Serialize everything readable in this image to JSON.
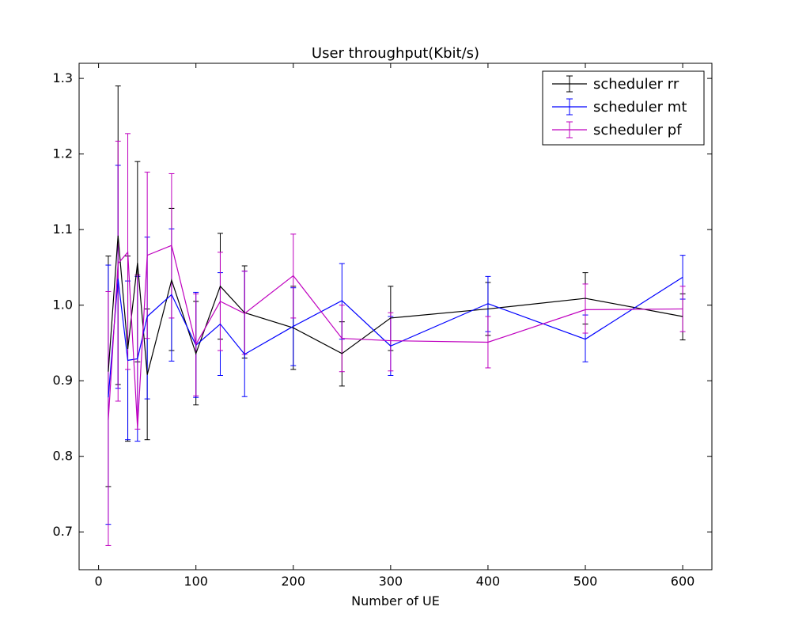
{
  "chart_data": {
    "type": "line",
    "title": "User throughput(Kbit/s)",
    "xlabel": "Number of UE",
    "ylabel": "",
    "xlim": [
      -20,
      630
    ],
    "ylim": [
      0.65,
      1.32
    ],
    "x_ticks": [
      0,
      100,
      200,
      300,
      400,
      500,
      600
    ],
    "y_ticks": [
      0.7,
      0.8,
      0.9,
      1.0,
      1.1,
      1.2,
      1.3
    ],
    "grid": false,
    "legend_position": "top-right",
    "x": [
      10,
      20,
      30,
      40,
      50,
      75,
      100,
      125,
      150,
      200,
      250,
      300,
      400,
      500,
      600
    ],
    "series": [
      {
        "name": "scheduler rr",
        "color": "#000000",
        "values": [
          0.912,
          1.092,
          0.942,
          1.056,
          0.908,
          1.033,
          0.936,
          1.025,
          0.99,
          0.97,
          0.936,
          0.983,
          0.995,
          1.009,
          0.985
        ],
        "err_low": [
          0.76,
          0.895,
          0.82,
          0.925,
          0.822,
          0.94,
          0.868,
          0.955,
          0.93,
          0.915,
          0.893,
          0.94,
          0.96,
          0.975,
          0.954
        ],
        "err_high": [
          1.065,
          1.29,
          1.065,
          1.19,
          0.995,
          1.128,
          1.005,
          1.095,
          1.052,
          1.025,
          0.978,
          1.025,
          1.03,
          1.043,
          1.015
        ]
      },
      {
        "name": "scheduler mt",
        "color": "#0000ff",
        "values": [
          0.878,
          1.035,
          0.927,
          0.929,
          0.985,
          1.014,
          0.947,
          0.975,
          0.935,
          0.972,
          1.006,
          0.946,
          1.002,
          0.955,
          1.037
        ],
        "err_low": [
          0.71,
          0.89,
          0.822,
          0.82,
          0.876,
          0.926,
          0.878,
          0.907,
          0.879,
          0.92,
          0.955,
          0.907,
          0.965,
          0.925,
          1.008
        ],
        "err_high": [
          1.053,
          1.185,
          1.032,
          1.038,
          1.09,
          1.101,
          1.017,
          1.043,
          1.045,
          1.023,
          1.055,
          0.985,
          1.038,
          0.987,
          1.066
        ]
      },
      {
        "name": "scheduler pf",
        "color": "#bf00bf",
        "values": [
          0.848,
          1.055,
          1.07,
          0.838,
          1.066,
          1.079,
          0.948,
          1.005,
          0.989,
          1.039,
          0.956,
          0.953,
          0.951,
          0.994,
          0.995
        ],
        "err_low": [
          0.682,
          0.873,
          0.915,
          0.836,
          0.956,
          0.983,
          0.88,
          0.94,
          0.935,
          0.983,
          0.912,
          0.913,
          0.917,
          0.963,
          0.965
        ],
        "err_high": [
          1.018,
          1.217,
          1.227,
          1.04,
          1.176,
          1.174,
          1.015,
          1.07,
          1.045,
          1.094,
          1.0,
          0.99,
          0.985,
          1.028,
          1.025
        ]
      }
    ]
  }
}
